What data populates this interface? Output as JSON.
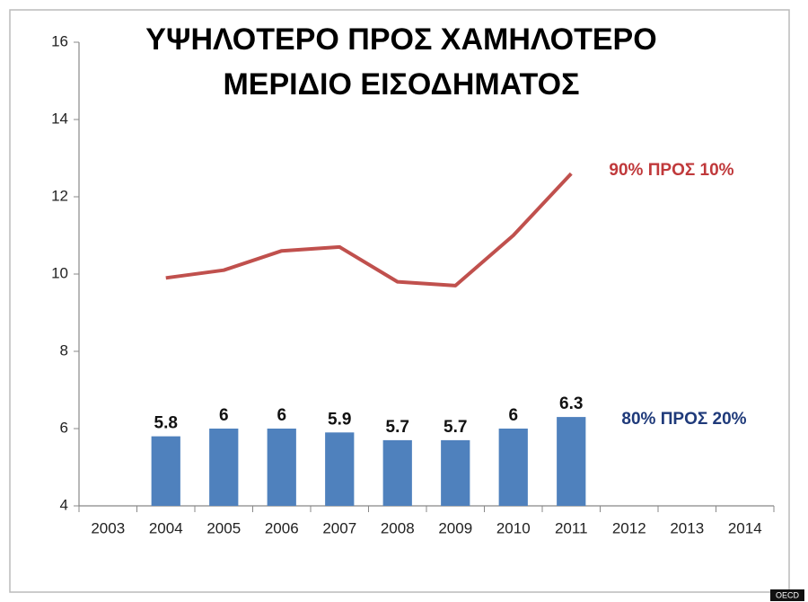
{
  "chart_data": {
    "type": "combo",
    "title": [
      "ΥΨΗΛΟΤΕΡΟ ΠΡΟΣ ΧΑΜΗΛΟΤΕΡΟ",
      "ΜΕΡΙΔΙΟ ΕΙΣΟΔΗΜΑΤΟΣ"
    ],
    "categories": [
      "2003",
      "2004",
      "2005",
      "2006",
      "2007",
      "2008",
      "2009",
      "2010",
      "2011",
      "2012",
      "2013",
      "2014"
    ],
    "series": [
      {
        "name": "80% ΠΡΟΣ 20%",
        "type": "bar",
        "color": "#4f81bd",
        "label_color": "#1f3a7a",
        "values": [
          null,
          5.8,
          6,
          6,
          5.9,
          5.7,
          5.7,
          6,
          6.3,
          null,
          null,
          null
        ]
      },
      {
        "name": "90% ΠΡΟΣ 10%",
        "type": "line",
        "color": "#c0504d",
        "label_color": "#c0393b",
        "values": [
          null,
          9.9,
          10.1,
          10.6,
          10.7,
          9.8,
          9.7,
          11.0,
          12.6,
          null,
          null,
          null
        ]
      }
    ],
    "ylim": [
      4,
      16
    ],
    "yticks": [
      4,
      6,
      8,
      10,
      12,
      14,
      16
    ],
    "grid": false,
    "source": "OECD"
  }
}
